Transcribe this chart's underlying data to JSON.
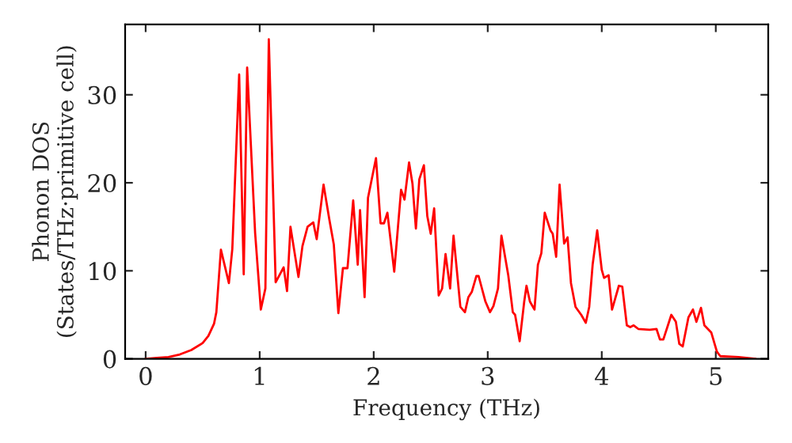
{
  "chart_data": {
    "type": "line",
    "xlabel": "Frequency (THz)",
    "ylabel": "Phonon DOS\n(States/THz·primitive cell)",
    "xlim": [
      -0.18,
      5.46
    ],
    "ylim": [
      0,
      38
    ],
    "xticks": [
      0,
      1,
      2,
      3,
      4,
      5
    ],
    "yticks": [
      0,
      10,
      20,
      30
    ],
    "marker": "none",
    "line_style": "solid",
    "series": [
      {
        "color": "#ff0000",
        "x": [
          0,
          0.1,
          0.2,
          0.3,
          0.4,
          0.5,
          0.55,
          0.6,
          0.62,
          0.66,
          0.73,
          0.76,
          0.82,
          0.86,
          0.89,
          0.96,
          1.01,
          1.05,
          1.08,
          1.14,
          1.21,
          1.24,
          1.27,
          1.34,
          1.375,
          1.42,
          1.47,
          1.5,
          1.56,
          1.61,
          1.65,
          1.69,
          1.73,
          1.77,
          1.82,
          1.86,
          1.88,
          1.92,
          1.95,
          2.02,
          2.06,
          2.09,
          2.12,
          2.18,
          2.24,
          2.27,
          2.31,
          2.34,
          2.37,
          2.4,
          2.44,
          2.47,
          2.5,
          2.53,
          2.57,
          2.6,
          2.63,
          2.67,
          2.7,
          2.76,
          2.8,
          2.83,
          2.86,
          2.9,
          2.92,
          2.98,
          3.02,
          3.05,
          3.09,
          3.12,
          3.18,
          3.22,
          3.24,
          3.28,
          3.32,
          3.34,
          3.37,
          3.41,
          3.44,
          3.47,
          3.5,
          3.55,
          3.57,
          3.6,
          3.63,
          3.67,
          3.7,
          3.73,
          3.77,
          3.82,
          3.86,
          3.89,
          3.92,
          3.96,
          4.0,
          4.02,
          4.06,
          4.09,
          4.15,
          4.18,
          4.22,
          4.25,
          4.28,
          4.32,
          4.42,
          4.48,
          4.51,
          4.54,
          4.61,
          4.65,
          4.68,
          4.71,
          4.76,
          4.8,
          4.83,
          4.87,
          4.9,
          4.96,
          5.01,
          5.04,
          5.2,
          5.35
        ],
        "values": [
          0,
          0.1,
          0.2,
          0.5,
          1.0,
          1.8,
          2.6,
          4,
          5.3,
          12.4,
          8.6,
          12.5,
          32.3,
          9.6,
          33.1,
          14.3,
          5.6,
          8,
          36.3,
          8.7,
          10.4,
          7.7,
          15,
          9.3,
          12.8,
          15,
          15.5,
          13.6,
          19.8,
          15.9,
          13,
          5.2,
          10.3,
          10.3,
          18,
          10.7,
          16.9,
          7,
          18.3,
          22.8,
          15.4,
          15.4,
          16.6,
          9.9,
          19.2,
          18.1,
          22.3,
          19.9,
          14.8,
          20.4,
          22,
          16.2,
          14.2,
          17.1,
          7.2,
          8,
          11.9,
          8,
          14,
          5.9,
          5.3,
          7,
          7.6,
          9.4,
          9.4,
          6.5,
          5.3,
          6,
          8,
          14,
          9.5,
          5.3,
          5,
          2,
          6.5,
          8.3,
          6.5,
          5.6,
          10.7,
          12,
          16.6,
          14.6,
          14.2,
          11.6,
          19.8,
          13.1,
          13.8,
          8.6,
          5.9,
          5,
          4.1,
          5.9,
          10.7,
          14.6,
          10.1,
          9.2,
          9.5,
          5.6,
          8.3,
          8.2,
          3.8,
          3.6,
          3.8,
          3.4,
          3.3,
          3.4,
          2.2,
          2.2,
          5,
          4.2,
          1.7,
          1.4,
          4.7,
          5.6,
          4.2,
          5.8,
          3.8,
          3,
          0.8,
          0.3,
          0.2,
          0
        ]
      }
    ]
  }
}
